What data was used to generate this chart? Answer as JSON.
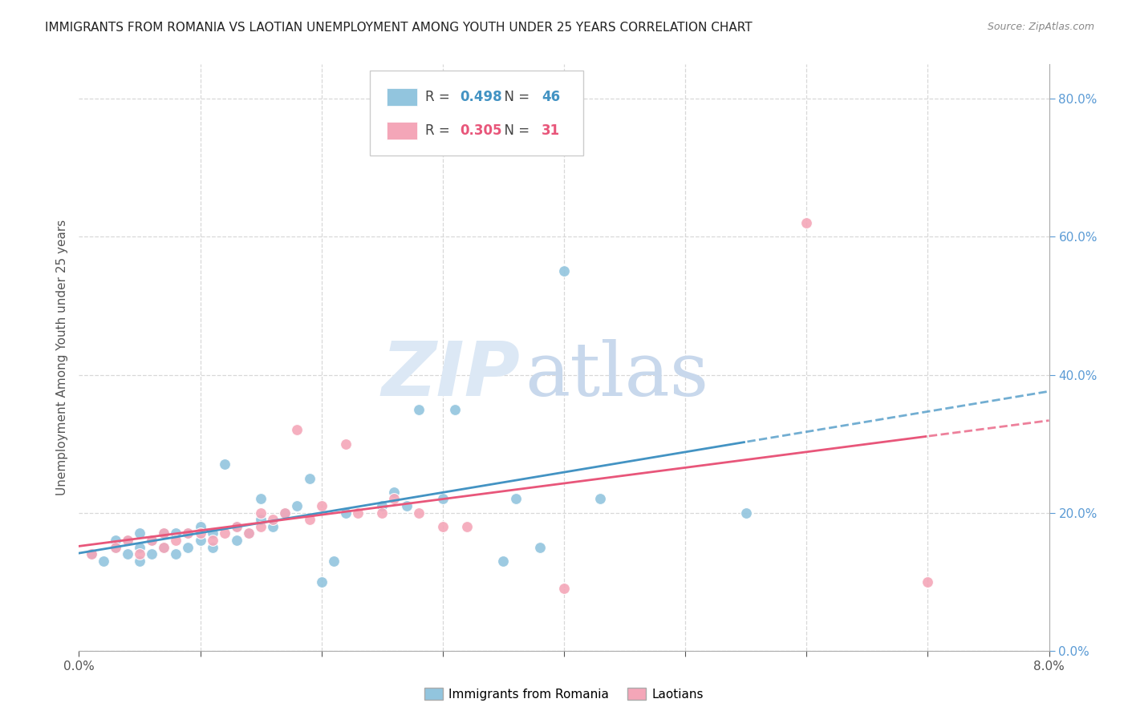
{
  "title": "IMMIGRANTS FROM ROMANIA VS LAOTIAN UNEMPLOYMENT AMONG YOUTH UNDER 25 YEARS CORRELATION CHART",
  "source": "Source: ZipAtlas.com",
  "ylabel": "Unemployment Among Youth under 25 years",
  "legend1_label": "Immigrants from Romania",
  "legend2_label": "Laotians",
  "R1": 0.498,
  "N1": 46,
  "R2": 0.305,
  "N2": 31,
  "blue_color": "#92c5de",
  "pink_color": "#f4a6b8",
  "blue_line_color": "#4393c3",
  "pink_line_color": "#e8567a",
  "right_axis_color": "#5b9bd5",
  "watermark_zip": "ZIP",
  "watermark_atlas": "atlas",
  "blue_scatter_x": [
    0.001,
    0.002,
    0.003,
    0.003,
    0.004,
    0.004,
    0.005,
    0.005,
    0.005,
    0.006,
    0.006,
    0.007,
    0.007,
    0.008,
    0.008,
    0.009,
    0.009,
    0.01,
    0.01,
    0.011,
    0.011,
    0.012,
    0.013,
    0.013,
    0.014,
    0.015,
    0.015,
    0.016,
    0.017,
    0.018,
    0.019,
    0.02,
    0.021,
    0.022,
    0.025,
    0.026,
    0.027,
    0.028,
    0.03,
    0.031,
    0.035,
    0.036,
    0.038,
    0.04,
    0.043,
    0.055
  ],
  "blue_scatter_y": [
    0.14,
    0.13,
    0.15,
    0.16,
    0.14,
    0.16,
    0.13,
    0.15,
    0.17,
    0.14,
    0.16,
    0.15,
    0.17,
    0.14,
    0.17,
    0.15,
    0.17,
    0.16,
    0.18,
    0.15,
    0.17,
    0.27,
    0.16,
    0.18,
    0.17,
    0.19,
    0.22,
    0.18,
    0.2,
    0.21,
    0.25,
    0.1,
    0.13,
    0.2,
    0.21,
    0.23,
    0.21,
    0.35,
    0.22,
    0.35,
    0.13,
    0.22,
    0.15,
    0.55,
    0.22,
    0.2
  ],
  "pink_scatter_x": [
    0.001,
    0.003,
    0.004,
    0.005,
    0.006,
    0.007,
    0.007,
    0.008,
    0.009,
    0.01,
    0.011,
    0.012,
    0.013,
    0.014,
    0.015,
    0.015,
    0.016,
    0.017,
    0.018,
    0.019,
    0.02,
    0.022,
    0.023,
    0.025,
    0.026,
    0.028,
    0.03,
    0.032,
    0.04,
    0.06,
    0.07
  ],
  "pink_scatter_y": [
    0.14,
    0.15,
    0.16,
    0.14,
    0.16,
    0.15,
    0.17,
    0.16,
    0.17,
    0.17,
    0.16,
    0.17,
    0.18,
    0.17,
    0.18,
    0.2,
    0.19,
    0.2,
    0.32,
    0.19,
    0.21,
    0.3,
    0.2,
    0.2,
    0.22,
    0.2,
    0.18,
    0.18,
    0.09,
    0.62,
    0.1
  ],
  "xmin": 0.0,
  "xmax": 0.08,
  "ymin": 0.0,
  "ymax": 0.85,
  "right_yticks": [
    0.0,
    0.2,
    0.4,
    0.6,
    0.8
  ],
  "right_yticklabels": [
    "0.0%",
    "20.0%",
    "40.0%",
    "60.0%",
    "80.0%"
  ],
  "grid_color": "#d8d8d8",
  "background_color": "#ffffff"
}
